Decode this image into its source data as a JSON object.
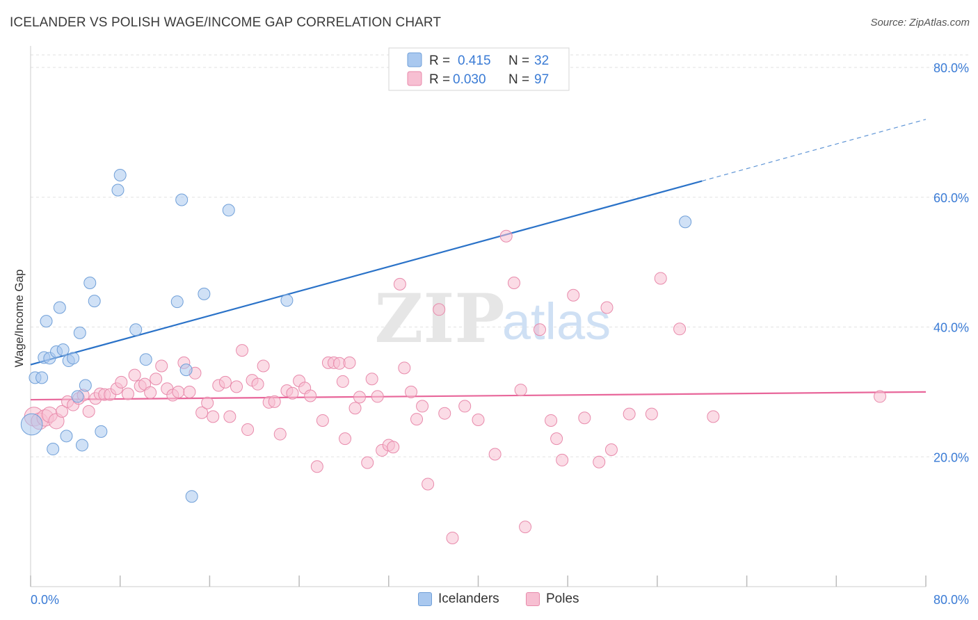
{
  "header": {
    "title": "ICELANDER VS POLISH WAGE/INCOME GAP CORRELATION CHART",
    "source": "Source: ZipAtlas.com"
  },
  "watermark": {
    "part1": "ZIP",
    "part2": "atlas"
  },
  "chart_data": {
    "type": "scatter",
    "ylabel": "Wage/Income Gap",
    "xlabel": "",
    "xlim": [
      0,
      80
    ],
    "ylim": [
      0,
      85
    ],
    "x_tick_labels": [
      "0.0%",
      "80.0%"
    ],
    "y_ticks": [
      20,
      40,
      60,
      80
    ],
    "y_tick_labels": [
      "20.0%",
      "40.0%",
      "60.0%",
      "80.0%"
    ],
    "grid": true,
    "legend_position": "top-center",
    "legend_stats": [
      {
        "r_label": "R =",
        "r_value": "0.415",
        "n_label": "N =",
        "n_value": "32"
      },
      {
        "r_label": "R =",
        "r_value": "0.030",
        "n_label": "N =",
        "n_value": "97"
      }
    ],
    "colors": {
      "icelanders_fill": "#a9c8ef",
      "icelanders_stroke": "#6f9fd8",
      "icelanders_line": "#2a72c8",
      "poles_fill": "#f7bfd2",
      "poles_stroke": "#e88aab",
      "poles_line": "#e8669a",
      "value_text": "#3a7bd5"
    },
    "series": [
      {
        "name": "Icelanders",
        "trend": {
          "x0": 0,
          "y0": 34.2,
          "x1": 60,
          "y1": 62.5,
          "dash_to_x": 80,
          "dash_to_y": 72
        },
        "points": [
          [
            0.1,
            25.0,
            1.8
          ],
          [
            0.4,
            32.2,
            1
          ],
          [
            1.0,
            32.2,
            1
          ],
          [
            1.2,
            35.3,
            1
          ],
          [
            1.4,
            40.9,
            1
          ],
          [
            1.7,
            35.2,
            1
          ],
          [
            2.0,
            21.2,
            1
          ],
          [
            2.3,
            36.2,
            1
          ],
          [
            2.6,
            43.0,
            1
          ],
          [
            2.9,
            36.5,
            1
          ],
          [
            3.2,
            23.2,
            1
          ],
          [
            3.4,
            34.8,
            1
          ],
          [
            3.8,
            35.2,
            1
          ],
          [
            4.2,
            29.3,
            1
          ],
          [
            4.4,
            39.1,
            1
          ],
          [
            4.6,
            21.8,
            1
          ],
          [
            4.9,
            31.0,
            1
          ],
          [
            5.3,
            46.8,
            1
          ],
          [
            5.7,
            44.0,
            1
          ],
          [
            6.3,
            23.9,
            1
          ],
          [
            7.8,
            61.1,
            1
          ],
          [
            8.0,
            63.4,
            1
          ],
          [
            9.4,
            39.6,
            1
          ],
          [
            10.3,
            35.0,
            1
          ],
          [
            13.1,
            43.9,
            1
          ],
          [
            13.5,
            59.6,
            1
          ],
          [
            13.9,
            33.4,
            1
          ],
          [
            14.4,
            13.9,
            1
          ],
          [
            15.5,
            45.1,
            1
          ],
          [
            17.7,
            58.0,
            1
          ],
          [
            22.9,
            44.1,
            1
          ],
          [
            58.5,
            56.2,
            1
          ]
        ]
      },
      {
        "name": "Poles",
        "trend": {
          "x0": 0,
          "y0": 28.8,
          "x1": 80,
          "y1": 30.0
        },
        "points": [
          [
            0.3,
            26.2,
            1.6
          ],
          [
            0.8,
            25.5,
            1.4
          ],
          [
            1.3,
            26.0,
            1.4
          ],
          [
            1.7,
            26.5,
            1.3
          ],
          [
            2.3,
            25.5,
            1.3
          ],
          [
            2.8,
            27.0,
            1
          ],
          [
            3.3,
            28.5,
            1
          ],
          [
            3.8,
            28.0,
            1
          ],
          [
            4.3,
            29.0,
            1
          ],
          [
            4.7,
            29.5,
            1
          ],
          [
            5.2,
            27.0,
            1
          ],
          [
            5.8,
            29.0,
            1
          ],
          [
            6.2,
            29.7,
            1
          ],
          [
            6.6,
            29.6,
            1
          ],
          [
            7.1,
            29.6,
            1
          ],
          [
            7.7,
            30.5,
            1
          ],
          [
            8.1,
            31.5,
            1
          ],
          [
            8.7,
            29.7,
            1
          ],
          [
            9.3,
            32.6,
            1
          ],
          [
            9.8,
            30.9,
            1
          ],
          [
            10.2,
            31.2,
            1
          ],
          [
            10.7,
            29.9,
            1
          ],
          [
            11.2,
            32.0,
            1
          ],
          [
            11.7,
            34.0,
            1
          ],
          [
            12.2,
            30.5,
            1
          ],
          [
            12.7,
            29.5,
            1
          ],
          [
            13.2,
            30.0,
            1
          ],
          [
            13.7,
            34.5,
            1
          ],
          [
            14.2,
            30.0,
            1
          ],
          [
            14.7,
            32.9,
            1
          ],
          [
            15.3,
            26.8,
            1
          ],
          [
            15.8,
            28.3,
            1
          ],
          [
            16.3,
            26.2,
            1
          ],
          [
            16.8,
            31.0,
            1
          ],
          [
            17.4,
            31.5,
            1
          ],
          [
            17.8,
            26.2,
            1
          ],
          [
            18.4,
            30.8,
            1
          ],
          [
            18.9,
            36.4,
            1
          ],
          [
            19.4,
            24.2,
            1
          ],
          [
            19.8,
            31.8,
            1
          ],
          [
            20.3,
            31.2,
            1
          ],
          [
            20.8,
            34.0,
            1
          ],
          [
            21.3,
            28.4,
            1
          ],
          [
            21.8,
            28.5,
            1
          ],
          [
            22.3,
            23.5,
            1
          ],
          [
            22.9,
            30.2,
            1
          ],
          [
            23.4,
            29.8,
            1
          ],
          [
            24.0,
            31.7,
            1
          ],
          [
            24.5,
            30.6,
            1
          ],
          [
            25.0,
            29.4,
            1
          ],
          [
            25.6,
            18.5,
            1
          ],
          [
            26.1,
            25.6,
            1
          ],
          [
            26.6,
            34.5,
            1
          ],
          [
            27.1,
            34.5,
            1
          ],
          [
            27.6,
            34.4,
            1
          ],
          [
            27.9,
            31.6,
            1
          ],
          [
            28.1,
            22.8,
            1
          ],
          [
            28.5,
            34.5,
            1
          ],
          [
            29.0,
            27.5,
            1
          ],
          [
            29.4,
            29.2,
            1
          ],
          [
            30.1,
            19.1,
            1
          ],
          [
            30.5,
            32.0,
            1
          ],
          [
            31.0,
            29.3,
            1
          ],
          [
            31.4,
            21.0,
            1
          ],
          [
            32.0,
            21.8,
            1
          ],
          [
            32.4,
            21.5,
            1
          ],
          [
            33.0,
            46.6,
            1
          ],
          [
            33.4,
            33.7,
            1
          ],
          [
            34.0,
            30.0,
            1
          ],
          [
            34.5,
            25.8,
            1
          ],
          [
            35.0,
            27.8,
            1
          ],
          [
            35.5,
            15.8,
            1
          ],
          [
            36.5,
            42.7,
            1
          ],
          [
            37.0,
            26.7,
            1
          ],
          [
            37.7,
            7.5,
            1
          ],
          [
            38.8,
            27.8,
            1
          ],
          [
            40.0,
            25.7,
            1
          ],
          [
            41.5,
            20.4,
            1
          ],
          [
            42.5,
            54.0,
            1
          ],
          [
            43.2,
            46.8,
            1
          ],
          [
            43.8,
            30.3,
            1
          ],
          [
            44.2,
            9.2,
            1
          ],
          [
            45.5,
            39.6,
            1
          ],
          [
            46.5,
            25.6,
            1
          ],
          [
            47.0,
            22.8,
            1
          ],
          [
            47.5,
            19.5,
            1
          ],
          [
            48.5,
            44.9,
            1
          ],
          [
            49.5,
            26.0,
            1
          ],
          [
            50.8,
            19.2,
            1
          ],
          [
            51.5,
            43.0,
            1
          ],
          [
            51.9,
            21.1,
            1
          ],
          [
            53.5,
            26.6,
            1
          ],
          [
            55.5,
            26.6,
            1
          ],
          [
            56.3,
            47.5,
            1
          ],
          [
            58.0,
            39.7,
            1
          ],
          [
            61.0,
            26.2,
            1
          ],
          [
            75.9,
            29.3,
            1
          ]
        ]
      }
    ]
  }
}
